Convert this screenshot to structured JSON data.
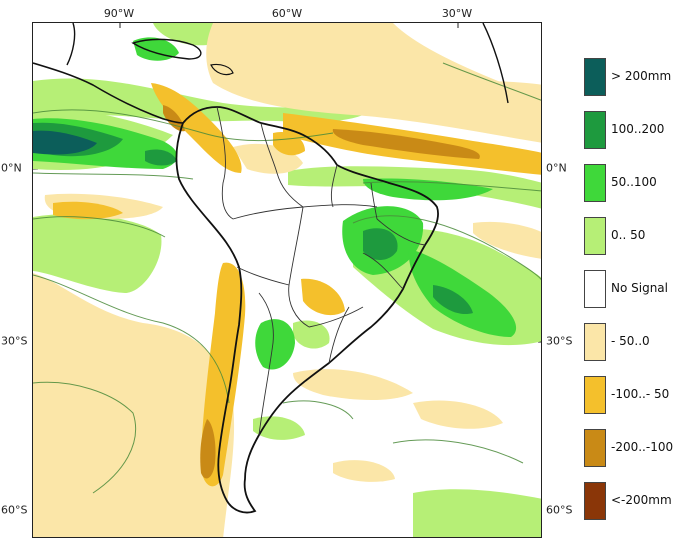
{
  "map": {
    "lon_labels": [
      "90°W",
      "60°W",
      "30°W"
    ],
    "lat_labels": [
      "0°N",
      "30°S",
      "60°S"
    ]
  },
  "legend": {
    "items": [
      {
        "label": "> 200mm",
        "color": "#0c5e5a"
      },
      {
        "label": "100..200",
        "color": "#1e9a3e"
      },
      {
        "label": "50..100",
        "color": "#3fd83a"
      },
      {
        "label": "0.. 50",
        "color": "#b6ef76"
      },
      {
        "label": "No Signal",
        "color": "#ffffff"
      },
      {
        "label": "- 50..0",
        "color": "#fbe6a8"
      },
      {
        "label": "-100..- 50",
        "color": "#f4c02c"
      },
      {
        "label": "-200..-100",
        "color": "#c98a16"
      },
      {
        "label": "<-200mm",
        "color": "#8a3608"
      }
    ]
  }
}
